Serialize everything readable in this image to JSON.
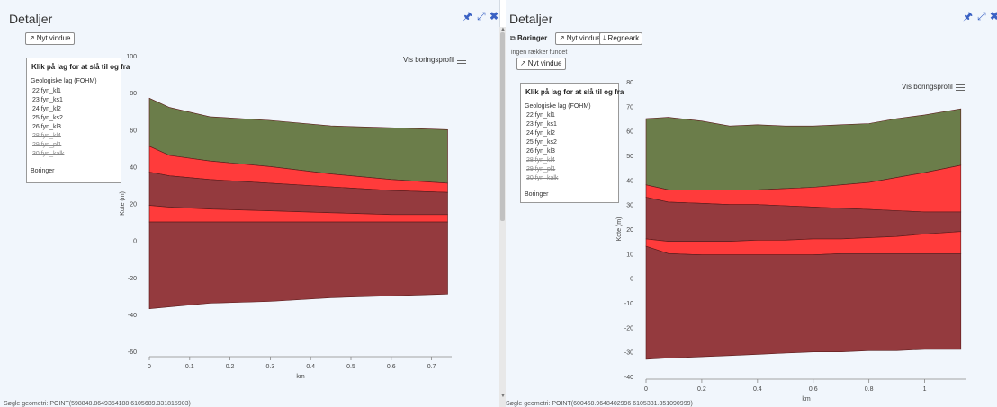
{
  "left_panel": {
    "title": "Detaljer",
    "nyt_vindue": "Nyt vindue",
    "footer": "Søgle geometri:   POINT(598848.8649354188 6105689.331815903)"
  },
  "right_panel": {
    "title": "Detaljer",
    "boringer_label": "Boringer",
    "nyt_vindue_small": "Nyt vindue",
    "regneark": "Regneark",
    "ingen_raekker": "ingen rækker fundet",
    "nyt_vindue": "Nyt vindue",
    "footer": "Søgle geometri:   POINT(600468.9648402996 6105331.351090999)"
  },
  "toolbar_icons": [
    "pin-icon",
    "expand-icon",
    "close-icon"
  ],
  "legend": {
    "title": "Klik på lag for at slå til og fra",
    "group": "Geologiske lag (FOHM)",
    "items": [
      {
        "label": "22 fyn_kl1",
        "active": true
      },
      {
        "label": "23 fyn_ks1",
        "active": true
      },
      {
        "label": "24 fyn_kl2",
        "active": true
      },
      {
        "label": "25 fyn_ks2",
        "active": true
      },
      {
        "label": "26 fyn_kl3",
        "active": true
      },
      {
        "label": "28 fyn_kl4",
        "active": false
      },
      {
        "label": "29 fyn_pl1",
        "active": false
      },
      {
        "label": "30 fyn_kalk",
        "active": false
      }
    ],
    "boringer": "Boringer"
  },
  "vis_boringsprofil": "Vis boringsprofil",
  "colors": {
    "green": "#6b7d4a",
    "red": "#ff3b3b",
    "darkred": "#943a3e",
    "outline": "#5a1a1a"
  },
  "chart_data": [
    {
      "type": "area",
      "xlabel": "km",
      "ylabel": "Kote (m)",
      "xlim": [
        0,
        0.75
      ],
      "ylim": [
        -60,
        100
      ],
      "xticks": [
        "0",
        "0.1",
        "0.2",
        "0.3",
        "0.4",
        "0.5",
        "0.6",
        "0.7"
      ],
      "yticks": [
        "100",
        "80",
        "60",
        "40",
        "20",
        "0",
        "-20",
        "-40",
        "-60"
      ],
      "x": [
        0,
        0.05,
        0.15,
        0.3,
        0.45,
        0.6,
        0.74
      ],
      "layers": [
        {
          "color": "green",
          "top": [
            77,
            72,
            67,
            65,
            62,
            61,
            60
          ],
          "bottom": [
            51,
            46,
            43,
            40,
            36,
            33,
            31
          ]
        },
        {
          "color": "red",
          "top": [
            51,
            46,
            43,
            40,
            36,
            33,
            31
          ],
          "bottom": [
            37,
            35,
            33,
            31,
            29,
            27,
            26
          ]
        },
        {
          "color": "darkred",
          "top": [
            37,
            35,
            33,
            31,
            29,
            27,
            26
          ],
          "bottom": [
            19,
            18,
            17,
            16,
            15,
            14,
            14
          ]
        },
        {
          "color": "red",
          "top": [
            19,
            18,
            17,
            16,
            15,
            14,
            14
          ],
          "bottom": [
            10,
            10,
            10,
            10,
            10,
            10,
            10
          ]
        },
        {
          "color": "darkred",
          "top": [
            10,
            10,
            10,
            10,
            10,
            10,
            10
          ],
          "bottom": [
            -37,
            -36,
            -34,
            -33,
            -31,
            -30,
            -29
          ]
        }
      ]
    },
    {
      "type": "area",
      "xlabel": "km",
      "ylabel": "Kote (m)",
      "xlim": [
        0,
        1.15
      ],
      "ylim": [
        -40,
        80
      ],
      "xticks": [
        "0",
        "0.2",
        "0.4",
        "0.6",
        "0.8",
        "1"
      ],
      "yticks": [
        "80",
        "70",
        "60",
        "50",
        "40",
        "30",
        "20",
        "10",
        "0",
        "-10",
        "-20",
        "-30",
        "-40"
      ],
      "x": [
        0,
        0.08,
        0.2,
        0.3,
        0.4,
        0.5,
        0.6,
        0.7,
        0.8,
        0.9,
        1.0,
        1.13
      ],
      "layers": [
        {
          "color": "green",
          "top": [
            65,
            65.5,
            64,
            62,
            62.5,
            62,
            62,
            62.5,
            63,
            65,
            66.5,
            69
          ],
          "bottom": [
            38,
            36,
            36,
            36,
            36,
            36.5,
            37,
            38,
            39,
            41,
            43,
            46
          ]
        },
        {
          "color": "red",
          "top": [
            38,
            36,
            36,
            36,
            36,
            36.5,
            37,
            38,
            39,
            41,
            43,
            46
          ],
          "bottom": [
            33,
            31,
            30.5,
            30,
            30,
            29.5,
            29,
            28.5,
            28,
            27.5,
            27,
            27
          ]
        },
        {
          "color": "darkred",
          "top": [
            33,
            31,
            30.5,
            30,
            30,
            29.5,
            29,
            28.5,
            28,
            27.5,
            27,
            27
          ],
          "bottom": [
            16,
            15,
            15,
            15,
            15.5,
            15.5,
            16,
            16,
            16.5,
            17,
            18,
            19
          ]
        },
        {
          "color": "red",
          "top": [
            16,
            15,
            15,
            15,
            15.5,
            15.5,
            16,
            16,
            16.5,
            17,
            18,
            19
          ],
          "bottom": [
            13,
            10,
            9.5,
            9.5,
            9.5,
            9.5,
            9.5,
            10,
            10,
            10,
            10,
            10
          ]
        },
        {
          "color": "darkred",
          "top": [
            13,
            10,
            9.5,
            9.5,
            9.5,
            9.5,
            9.5,
            10,
            10,
            10,
            10,
            10
          ],
          "bottom": [
            -33,
            -32.5,
            -32,
            -31.5,
            -31,
            -30.5,
            -30,
            -30,
            -29.5,
            -29.5,
            -29,
            -29
          ]
        }
      ]
    }
  ]
}
